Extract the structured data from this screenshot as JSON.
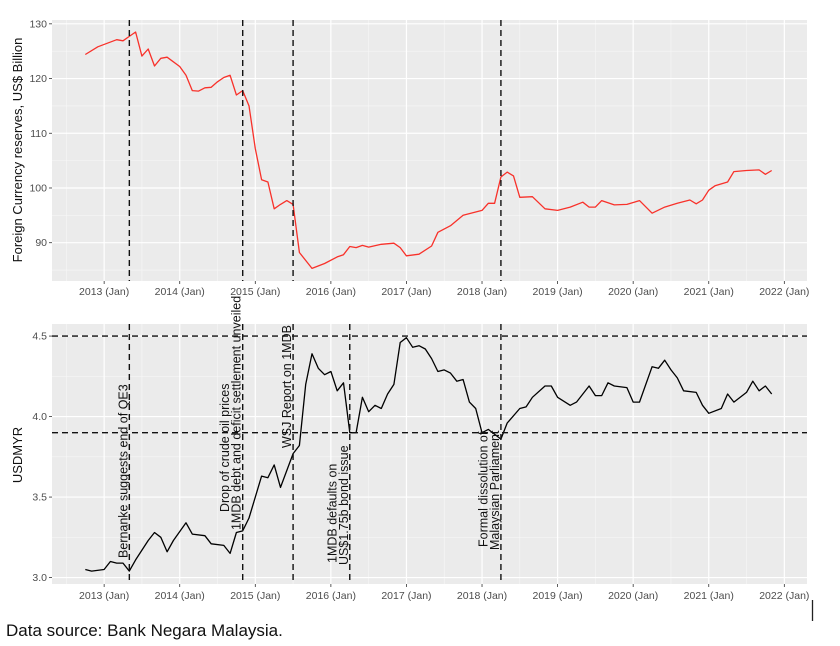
{
  "source_note": "Data source: Bank Negara Malaysia.",
  "chart_data": [
    {
      "type": "line",
      "ylabel": "Foreign Currency reserves, US$ Billion",
      "xlabel": "",
      "ylim": [
        83,
        130.7
      ],
      "xlim": [
        "2012-05",
        "2022-04"
      ],
      "grid": true,
      "y_ticks": [
        "90",
        "100",
        "110",
        "120",
        "130"
      ],
      "x_ticks": [
        "2013 (Jan)",
        "2014 (Jan)",
        "2015 (Jan)",
        "2016 (Jan)",
        "2017 (Jan)",
        "2018 (Jan)",
        "2019 (Jan)",
        "2020 (Jan)",
        "2021 (Jan)",
        "2022 (Jan)"
      ],
      "line_color": "#f8312a",
      "vlines": [
        "2013-05",
        "2014-11",
        "2015-07",
        "2018-04"
      ],
      "series": [
        {
          "x": [
            "2012-10",
            "2012-12",
            "2013-03",
            "2013-04",
            "2013-06",
            "2013-07",
            "2013-08",
            "2013-09",
            "2013-10",
            "2013-11",
            "2014-01",
            "2014-02",
            "2014-03",
            "2014-04",
            "2014-05",
            "2014-06",
            "2014-07",
            "2014-08",
            "2014-09",
            "2014-10",
            "2014-11",
            "2014-12",
            "2015-01",
            "2015-02",
            "2015-03",
            "2015-04",
            "2015-05",
            "2015-06",
            "2015-07",
            "2015-08",
            "2015-10",
            "2015-12",
            "2016-02",
            "2016-03",
            "2016-04",
            "2016-05",
            "2016-06",
            "2016-07",
            "2016-09",
            "2016-11",
            "2016-12",
            "2017-01",
            "2017-03",
            "2017-05",
            "2017-06",
            "2017-08",
            "2017-10",
            "2018-01",
            "2018-02",
            "2018-03",
            "2018-04",
            "2018-05",
            "2018-06",
            "2018-07",
            "2018-09",
            "2018-11",
            "2019-01",
            "2019-03",
            "2019-05",
            "2019-06",
            "2019-07",
            "2019-08",
            "2019-10",
            "2019-12",
            "2020-02",
            "2020-04",
            "2020-06",
            "2020-08",
            "2020-10",
            "2020-11",
            "2020-12",
            "2021-01",
            "2021-02",
            "2021-04",
            "2021-05",
            "2021-07",
            "2021-09",
            "2021-10",
            "2021-11"
          ],
          "y": [
            124.4,
            125.8,
            127.1,
            126.9,
            128.5,
            124.1,
            125.4,
            122.3,
            123.7,
            123.9,
            122.2,
            120.6,
            117.8,
            117.7,
            118.3,
            118.4,
            119.4,
            120.2,
            120.6,
            117.0,
            117.8,
            115.0,
            107.2,
            101.5,
            101.1,
            96.2,
            97.0,
            97.7,
            97.0,
            88.2,
            85.3,
            86.2,
            87.4,
            87.8,
            89.3,
            89.1,
            89.5,
            89.2,
            89.7,
            89.9,
            89.1,
            87.6,
            87.9,
            89.4,
            91.9,
            93.1,
            95.0,
            95.9,
            97.2,
            97.2,
            102.0,
            102.9,
            102.2,
            98.3,
            98.4,
            96.2,
            95.9,
            96.5,
            97.4,
            96.5,
            96.5,
            97.7,
            96.9,
            97.0,
            97.7,
            95.4,
            96.5,
            97.2,
            97.8,
            97.1,
            97.8,
            99.6,
            100.4,
            101.1,
            103.0,
            103.2,
            103.3,
            102.5,
            103.2
          ]
        }
      ]
    },
    {
      "type": "line",
      "ylabel": "USDMYR",
      "xlabel": "",
      "ylim": [
        2.96,
        4.575
      ],
      "xlim": [
        "2012-05",
        "2022-04"
      ],
      "grid": true,
      "y_ticks": [
        "3.0",
        "3.5",
        "4.0",
        "4.5"
      ],
      "x_ticks": [
        "2013 (Jan)",
        "2014 (Jan)",
        "2015 (Jan)",
        "2016 (Jan)",
        "2017 (Jan)",
        "2018 (Jan)",
        "2019 (Jan)",
        "2020 (Jan)",
        "2021 (Jan)",
        "2022 (Jan)"
      ],
      "line_color": "#000000",
      "hlines": [
        4.5,
        3.9
      ],
      "vlines": [
        "2013-05",
        "2014-11",
        "2015-07",
        "2016-04",
        "2018-04"
      ],
      "annotations": [
        {
          "date": "2013-05",
          "lines": [
            "Bernanke suggests end of QE3"
          ]
        },
        {
          "date": "2014-11",
          "lines": [
            "Drop of crude oil prices",
            "1MDB debt and deficit settlement unveiled"
          ]
        },
        {
          "date": "2015-07",
          "lines": [
            "WSJ Report on 1MDB"
          ]
        },
        {
          "date": "2016-04",
          "lines": [
            "1MDB defaults on",
            "US$1.75b bond issue"
          ]
        },
        {
          "date": "2018-04",
          "lines": [
            "Formal dissolution of",
            "Malaysian Parliament"
          ]
        }
      ],
      "series": [
        {
          "x": [
            "2012-10",
            "2012-11",
            "2013-01",
            "2013-02",
            "2013-03",
            "2013-04",
            "2013-05",
            "2013-06",
            "2013-08",
            "2013-09",
            "2013-10",
            "2013-11",
            "2013-12",
            "2014-02",
            "2014-03",
            "2014-05",
            "2014-06",
            "2014-08",
            "2014-09",
            "2014-10",
            "2014-11",
            "2014-12",
            "2015-01",
            "2015-02",
            "2015-03",
            "2015-04",
            "2015-05",
            "2015-07",
            "2015-08",
            "2015-09",
            "2015-10",
            "2015-11",
            "2015-12",
            "2016-01",
            "2016-02",
            "2016-03",
            "2016-04",
            "2016-05",
            "2016-06",
            "2016-07",
            "2016-08",
            "2016-09",
            "2016-10",
            "2016-11",
            "2016-12",
            "2017-01",
            "2017-02",
            "2017-03",
            "2017-04",
            "2017-05",
            "2017-06",
            "2017-07",
            "2017-08",
            "2017-09",
            "2017-10",
            "2017-11",
            "2017-12",
            "2018-01",
            "2018-02",
            "2018-04",
            "2018-05",
            "2018-07",
            "2018-08",
            "2018-09",
            "2018-11",
            "2018-12",
            "2019-01",
            "2019-03",
            "2019-04",
            "2019-06",
            "2019-07",
            "2019-08",
            "2019-09",
            "2019-10",
            "2019-12",
            "2020-01",
            "2020-02",
            "2020-04",
            "2020-05",
            "2020-06",
            "2020-07",
            "2020-08",
            "2020-09",
            "2020-11",
            "2020-12",
            "2021-01",
            "2021-03",
            "2021-04",
            "2021-05",
            "2021-07",
            "2021-08",
            "2021-09",
            "2021-10",
            "2021-11"
          ],
          "y": [
            3.05,
            3.04,
            3.05,
            3.1,
            3.09,
            3.09,
            3.04,
            3.11,
            3.23,
            3.28,
            3.25,
            3.16,
            3.23,
            3.34,
            3.27,
            3.26,
            3.21,
            3.2,
            3.15,
            3.28,
            3.29,
            3.37,
            3.5,
            3.63,
            3.62,
            3.7,
            3.56,
            3.77,
            3.82,
            4.2,
            4.39,
            4.3,
            4.26,
            4.28,
            4.16,
            4.21,
            3.9,
            3.9,
            4.12,
            4.03,
            4.07,
            4.05,
            4.14,
            4.2,
            4.46,
            4.49,
            4.43,
            4.44,
            4.42,
            4.36,
            4.28,
            4.29,
            4.27,
            4.22,
            4.23,
            4.09,
            4.05,
            3.9,
            3.92,
            3.86,
            3.96,
            4.05,
            4.06,
            4.12,
            4.19,
            4.19,
            4.12,
            4.07,
            4.09,
            4.19,
            4.13,
            4.13,
            4.21,
            4.19,
            4.18,
            4.09,
            4.09,
            4.31,
            4.3,
            4.35,
            4.29,
            4.24,
            4.16,
            4.15,
            4.07,
            4.02,
            4.05,
            4.14,
            4.09,
            4.15,
            4.22,
            4.16,
            4.19,
            4.14
          ]
        }
      ]
    }
  ]
}
